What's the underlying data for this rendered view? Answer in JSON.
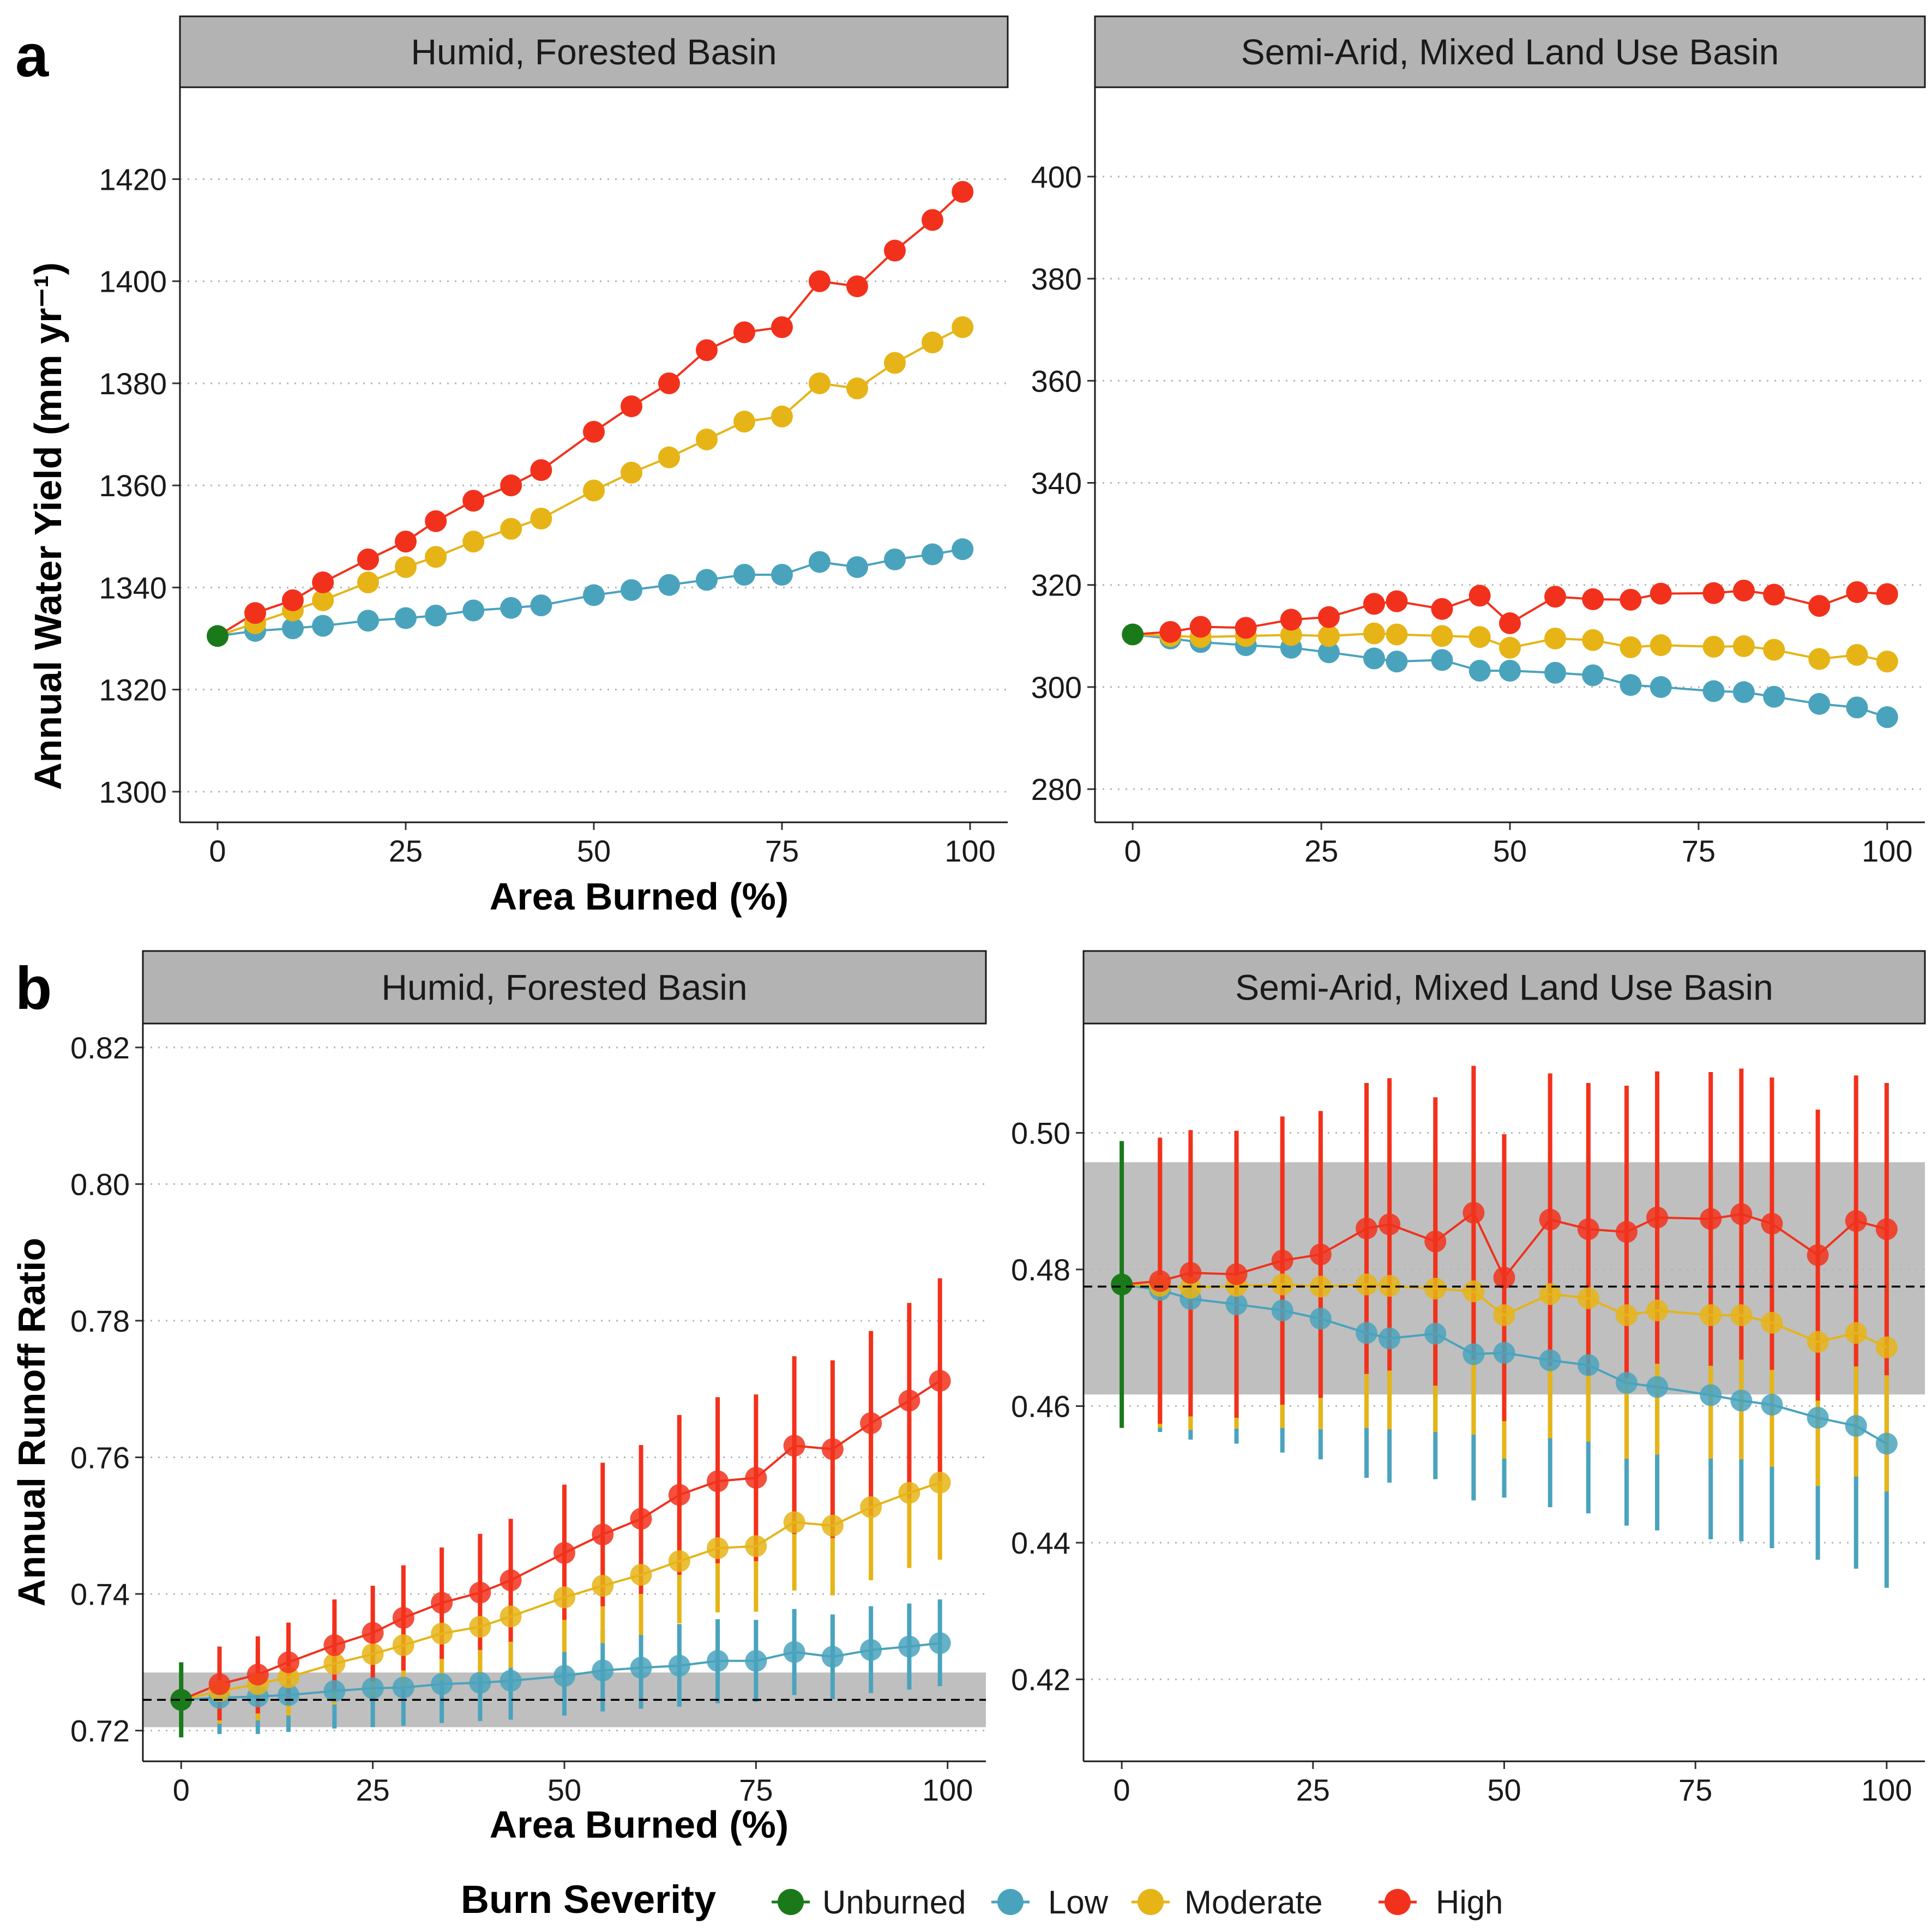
{
  "panel_tags": [
    "a",
    "b"
  ],
  "colors": {
    "Unburned": "#1a7a1a",
    "Low": "#4aa3bd",
    "Moderate": "#e6b416",
    "High": "#f2311c",
    "band": "#bfbfbf",
    "strip": "#b3b3b3"
  },
  "legend": {
    "title": "Burn Severity",
    "items": [
      "Unburned",
      "Low",
      "Moderate",
      "High"
    ]
  },
  "chart_data": [
    {
      "type": "scatter",
      "panel": "a",
      "strip": "Humid, Forested Basin",
      "xlabel": "Area Burned (%)",
      "ylabel": "Annual Water Yield (mm yr⁻¹)",
      "xlim": [
        -5,
        105
      ],
      "ylim": [
        1294,
        1438
      ],
      "xticks": [
        0,
        25,
        50,
        75,
        100
      ],
      "yticks": [
        1300,
        1320,
        1340,
        1360,
        1380,
        1400,
        1420
      ],
      "grid": "horizontal dotted",
      "unburned": {
        "x": 0,
        "y": 1330.5
      },
      "series": [
        {
          "name": "Low",
          "x": [
            5,
            10,
            14,
            20,
            25,
            29,
            34,
            39,
            43,
            50,
            55,
            60,
            65,
            70,
            75,
            80,
            85,
            90,
            95,
            99
          ],
          "y": [
            1331.5,
            1332,
            1332.5,
            1333.5,
            1334,
            1334.5,
            1335.5,
            1336,
            1336.5,
            1338.5,
            1339.5,
            1340.5,
            1341.5,
            1342.5,
            1342.5,
            1345,
            1344,
            1345.5,
            1346.5,
            1347.5
          ]
        },
        {
          "name": "Moderate",
          "x": [
            5,
            10,
            14,
            20,
            25,
            29,
            34,
            39,
            43,
            50,
            55,
            60,
            65,
            70,
            75,
            80,
            85,
            90,
            95,
            99
          ],
          "y": [
            1333,
            1335.5,
            1337.5,
            1341,
            1344,
            1346,
            1349,
            1351.5,
            1353.5,
            1359,
            1362.5,
            1365.5,
            1369,
            1372.5,
            1373.5,
            1380,
            1379,
            1384,
            1388,
            1391
          ]
        },
        {
          "name": "High",
          "x": [
            5,
            10,
            14,
            20,
            25,
            29,
            34,
            39,
            43,
            50,
            55,
            60,
            65,
            70,
            75,
            80,
            85,
            90,
            95,
            99
          ],
          "y": [
            1335,
            1337.5,
            1341,
            1345.5,
            1349,
            1353,
            1357,
            1360,
            1363,
            1370.5,
            1375.5,
            1380,
            1386.5,
            1390,
            1391,
            1400,
            1399,
            1406,
            1412,
            1417.5
          ]
        }
      ]
    },
    {
      "type": "scatter",
      "panel": "a",
      "strip": "Semi-Arid, Mixed Land Use Basin",
      "xlabel": "Area Burned (%)",
      "ylabel": "",
      "xlim": [
        -5,
        105
      ],
      "ylim": [
        273.5,
        417.5
      ],
      "xticks": [
        0,
        25,
        50,
        75,
        100
      ],
      "yticks": [
        280,
        300,
        320,
        340,
        360,
        380,
        400
      ],
      "grid": "horizontal dotted",
      "unburned": {
        "x": 0,
        "y": 310.3
      },
      "series": [
        {
          "name": "Low",
          "x": [
            5,
            9,
            15,
            21,
            26,
            32,
            35,
            41,
            46,
            50,
            56,
            61,
            66,
            70,
            77,
            81,
            85,
            91,
            96,
            100
          ],
          "y": [
            309.5,
            308.8,
            308.2,
            307.7,
            306.8,
            305.6,
            305,
            305.3,
            303.2,
            303.2,
            302.8,
            302.3,
            300.4,
            300,
            299.2,
            299,
            298.1,
            296.7,
            296,
            294.1
          ]
        },
        {
          "name": "Moderate",
          "x": [
            5,
            9,
            15,
            21,
            26,
            32,
            35,
            41,
            46,
            50,
            56,
            61,
            66,
            70,
            77,
            81,
            85,
            91,
            96,
            100
          ],
          "y": [
            310,
            309.8,
            310,
            310.2,
            310,
            310.5,
            310.3,
            310,
            309.8,
            307.7,
            309.5,
            309.2,
            307.8,
            308.2,
            307.9,
            308,
            307.3,
            305.5,
            306.3,
            305
          ]
        },
        {
          "name": "High",
          "x": [
            5,
            9,
            15,
            21,
            26,
            32,
            35,
            41,
            46,
            50,
            56,
            61,
            66,
            70,
            77,
            81,
            85,
            91,
            96,
            100
          ],
          "y": [
            310.8,
            311.8,
            311.6,
            313.2,
            313.7,
            316.3,
            316.8,
            315.3,
            317.9,
            312.5,
            317.7,
            317.2,
            317.1,
            318.3,
            318.4,
            318.9,
            318.1,
            315.9,
            318.6,
            318.2
          ]
        }
      ]
    },
    {
      "type": "scatter",
      "panel": "b",
      "strip": "Humid, Forested Basin",
      "xlabel": "Area Burned (%)",
      "ylabel": "Annual Runoff Ratio",
      "xlim": [
        -5,
        105
      ],
      "ylim": [
        0.7155,
        0.8235
      ],
      "xticks": [
        0,
        25,
        50,
        75,
        100
      ],
      "yticks": [
        0.72,
        0.74,
        0.76,
        0.78,
        0.8,
        0.82
      ],
      "grid": "horizontal dotted",
      "reference_line": 0.7245,
      "band": [
        0.7205,
        0.7285
      ],
      "unburned": {
        "x": 0,
        "y": 0.7245,
        "lo": 0.719,
        "hi": 0.73
      },
      "series": [
        {
          "name": "Low",
          "x": [
            5,
            10,
            14,
            20,
            25,
            29,
            34,
            39,
            43,
            50,
            55,
            60,
            65,
            70,
            75,
            80,
            85,
            90,
            95,
            99
          ],
          "y": [
            0.7248,
            0.725,
            0.7252,
            0.7258,
            0.7262,
            0.7263,
            0.7268,
            0.727,
            0.7273,
            0.728,
            0.7288,
            0.7292,
            0.7295,
            0.7302,
            0.7302,
            0.7315,
            0.7308,
            0.7318,
            0.7323,
            0.7328
          ],
          "lo": [
            0.7195,
            0.7195,
            0.7198,
            0.7203,
            0.7205,
            0.7207,
            0.7211,
            0.7214,
            0.7216,
            0.7222,
            0.7228,
            0.7232,
            0.7235,
            0.724,
            0.7242,
            0.7252,
            0.7246,
            0.7255,
            0.726,
            0.7265
          ],
          "hi": [
            0.7302,
            0.7305,
            0.7308,
            0.7313,
            0.7318,
            0.732,
            0.7325,
            0.7327,
            0.733,
            0.7338,
            0.7348,
            0.7352,
            0.7356,
            0.7363,
            0.7362,
            0.7378,
            0.737,
            0.7382,
            0.7386,
            0.7392
          ]
        },
        {
          "name": "Moderate",
          "x": [
            5,
            10,
            14,
            20,
            25,
            29,
            34,
            39,
            43,
            50,
            55,
            60,
            65,
            70,
            75,
            80,
            85,
            90,
            95,
            99
          ],
          "y": [
            0.7258,
            0.7268,
            0.7278,
            0.7298,
            0.7312,
            0.7325,
            0.7342,
            0.7352,
            0.7367,
            0.7395,
            0.7412,
            0.7428,
            0.7448,
            0.7467,
            0.747,
            0.7505,
            0.75,
            0.7527,
            0.7548,
            0.7563
          ],
          "lo": [
            0.721,
            0.7215,
            0.7222,
            0.7238,
            0.725,
            0.726,
            0.7273,
            0.728,
            0.7292,
            0.7315,
            0.7328,
            0.734,
            0.7357,
            0.7373,
            0.7374,
            0.7405,
            0.7398,
            0.742,
            0.7438,
            0.745
          ],
          "hi": [
            0.7306,
            0.7322,
            0.7335,
            0.736,
            0.7375,
            0.739,
            0.741,
            0.7425,
            0.7442,
            0.7475,
            0.7495,
            0.7515,
            0.7538,
            0.7562,
            0.7566,
            0.7605,
            0.7602,
            0.7635,
            0.7658,
            0.7676
          ]
        },
        {
          "name": "High",
          "x": [
            5,
            10,
            14,
            20,
            25,
            29,
            34,
            39,
            43,
            50,
            55,
            60,
            65,
            70,
            75,
            80,
            85,
            90,
            95,
            99
          ],
          "y": [
            0.7268,
            0.7282,
            0.73,
            0.7325,
            0.7343,
            0.7365,
            0.7387,
            0.7402,
            0.742,
            0.746,
            0.7487,
            0.751,
            0.7545,
            0.7565,
            0.757,
            0.7617,
            0.7612,
            0.765,
            0.7683,
            0.7712
          ],
          "lo": [
            0.7215,
            0.7225,
            0.7238,
            0.7258,
            0.7272,
            0.7288,
            0.7305,
            0.7318,
            0.733,
            0.7362,
            0.7382,
            0.74,
            0.7428,
            0.7445,
            0.7448,
            0.7488,
            0.7482,
            0.7515,
            0.754,
            0.7565
          ],
          "hi": [
            0.7323,
            0.7338,
            0.7358,
            0.7392,
            0.7412,
            0.7442,
            0.7468,
            0.7488,
            0.751,
            0.756,
            0.7592,
            0.7618,
            0.7662,
            0.7688,
            0.7692,
            0.7748,
            0.7742,
            0.7785,
            0.7826,
            0.7862
          ]
        }
      ]
    },
    {
      "type": "scatter",
      "panel": "b",
      "strip": "Semi-Arid, Mixed Land Use Basin",
      "xlabel": "Area Burned (%)",
      "ylabel": "",
      "xlim": [
        -5,
        105
      ],
      "ylim": [
        0.408,
        0.516
      ],
      "xticks": [
        0,
        25,
        50,
        75,
        100
      ],
      "yticks": [
        0.42,
        0.44,
        0.46,
        0.48,
        0.5
      ],
      "grid": "horizontal dotted",
      "reference_line": 0.4775,
      "band": [
        0.4617,
        0.4957
      ],
      "unburned": {
        "x": 0,
        "y": 0.4778,
        "lo": 0.4568,
        "hi": 0.4988
      },
      "series": [
        {
          "name": "Low",
          "x": [
            5,
            9,
            15,
            21,
            26,
            32,
            35,
            41,
            46,
            50,
            56,
            61,
            66,
            70,
            77,
            81,
            85,
            91,
            96,
            100
          ],
          "y": [
            0.477,
            0.4757,
            0.4749,
            0.474,
            0.4728,
            0.4707,
            0.4699,
            0.4706,
            0.4676,
            0.4678,
            0.4667,
            0.466,
            0.4634,
            0.4628,
            0.4616,
            0.4608,
            0.4602,
            0.4583,
            0.4571,
            0.4545
          ],
          "lo": [
            0.4562,
            0.4551,
            0.4545,
            0.4532,
            0.4522,
            0.4495,
            0.4488,
            0.4493,
            0.4462,
            0.4466,
            0.4452,
            0.4443,
            0.4425,
            0.4418,
            0.4405,
            0.4402,
            0.4392,
            0.4375,
            0.4362,
            0.4334
          ],
          "hi": [
            0.4978,
            0.4963,
            0.4953,
            0.4948,
            0.4934,
            0.4919,
            0.491,
            0.4919,
            0.489,
            0.489,
            0.4882,
            0.4877,
            0.4843,
            0.4838,
            0.4827,
            0.4814,
            0.4812,
            0.4791,
            0.478,
            0.4756
          ]
        },
        {
          "name": "Moderate",
          "x": [
            5,
            9,
            15,
            21,
            26,
            32,
            35,
            41,
            46,
            50,
            56,
            61,
            66,
            70,
            77,
            81,
            85,
            91,
            96,
            100
          ],
          "y": [
            0.4776,
            0.4773,
            0.4776,
            0.4778,
            0.4775,
            0.4778,
            0.4776,
            0.4772,
            0.4768,
            0.4733,
            0.4764,
            0.4758,
            0.4733,
            0.474,
            0.4733,
            0.4733,
            0.4722,
            0.4694,
            0.4707,
            0.4686
          ],
          "lo": [
            0.4568,
            0.4565,
            0.4567,
            0.4568,
            0.4566,
            0.4568,
            0.4566,
            0.4562,
            0.4558,
            0.4523,
            0.4553,
            0.4548,
            0.4523,
            0.4529,
            0.4523,
            0.4522,
            0.4511,
            0.4483,
            0.4497,
            0.4475
          ],
          "hi": [
            0.4984,
            0.4981,
            0.4985,
            0.4988,
            0.4984,
            0.4988,
            0.4986,
            0.4982,
            0.4978,
            0.4943,
            0.4975,
            0.4968,
            0.4943,
            0.4951,
            0.4943,
            0.4944,
            0.4933,
            0.4905,
            0.4917,
            0.4897
          ]
        },
        {
          "name": "High",
          "x": [
            5,
            9,
            15,
            21,
            26,
            32,
            35,
            41,
            46,
            50,
            56,
            61,
            66,
            70,
            77,
            81,
            85,
            91,
            96,
            100
          ],
          "y": [
            0.4783,
            0.4795,
            0.4793,
            0.4813,
            0.4822,
            0.486,
            0.4866,
            0.4841,
            0.4883,
            0.4788,
            0.4873,
            0.4859,
            0.4855,
            0.4876,
            0.4874,
            0.4881,
            0.4867,
            0.4821,
            0.4871,
            0.4859
          ],
          "lo": [
            0.4574,
            0.4585,
            0.4583,
            0.4602,
            0.4612,
            0.4647,
            0.4652,
            0.463,
            0.4668,
            0.4578,
            0.4659,
            0.4645,
            0.4641,
            0.4662,
            0.4659,
            0.4668,
            0.4653,
            0.4608,
            0.4658,
            0.4645
          ],
          "hi": [
            0.4993,
            0.5004,
            0.5003,
            0.5024,
            0.5032,
            0.5073,
            0.508,
            0.5052,
            0.5098,
            0.4998,
            0.5087,
            0.5073,
            0.5069,
            0.509,
            0.5089,
            0.5094,
            0.5081,
            0.5034,
            0.5084,
            0.5073
          ]
        }
      ]
    }
  ]
}
